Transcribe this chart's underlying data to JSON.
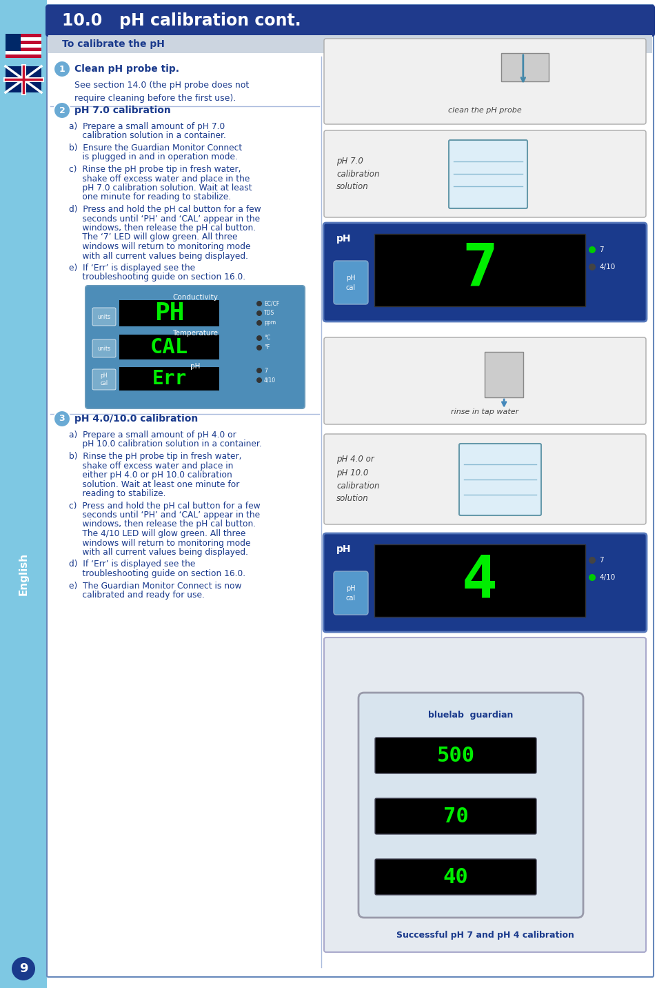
{
  "title": "10.0   pH calibration cont.",
  "title_bg": "#1f3a8c",
  "title_text_color": "#ffffff",
  "sidebar_color": "#7ec8e3",
  "main_bg": "#ffffff",
  "section_header_text": "To calibrate the pH",
  "section_header_color": "#1a3a8c",
  "step1_title": "Clean pH probe tip.",
  "step1_text": "See section 14.0 (the pH probe does not\nrequire cleaning before the first use).",
  "step2_title": "pH 7.0 calibration",
  "step2_items": [
    "a)  Prepare a small amount of pH 7.0\n     calibration solution in a container.",
    "b)  Ensure the Guardian Monitor Connect\n     is plugged in and in operation mode.",
    "c)  Rinse the pH probe tip in fresh water,\n     shake off excess water and place in the\n     pH 7.0 calibration solution. Wait at least\n     one minute for reading to stabilize.",
    "d)  Press and hold the pH cal button for a few\n     seconds until ‘PH’ and ‘CAL’ appear in the\n     windows, then release the pH cal button.\n     The ‘7’ LED will glow green. All three\n     windows will return to monitoring mode\n     with all current values being displayed.",
    "e)  If ‘Err’ is displayed see the\n     troubleshooting guide on section 16.0."
  ],
  "step3_title": "pH 4.0/10.0 calibration",
  "step3_items": [
    "a)  Prepare a small amount of pH 4.0 or\n     pH 10.0 calibration solution in a container.",
    "b)  Rinse the pH probe tip in fresh water,\n     shake off excess water and place in\n     either pH 4.0 or pH 10.0 calibration\n     solution. Wait at least one minute for\n     reading to stabilize.",
    "c)  Press and hold the pH cal button for a few\n     seconds until ‘PH’ and ‘CAL’ appear in the\n     windows, then release the pH cal button.\n     The 4/10 LED will glow green. All three\n     windows will return to monitoring mode\n     with all current values being displayed.",
    "d)  If ‘Err’ is displayed see the\n     troubleshooting guide on section 16.0.",
    "e)  The Guardian Monitor Connect is now\n     calibrated and ready for use."
  ],
  "page_number": "9",
  "text_color": "#1a3a8c",
  "divider_color": "#aabbdd",
  "step_circle_color": "#6aaad4"
}
